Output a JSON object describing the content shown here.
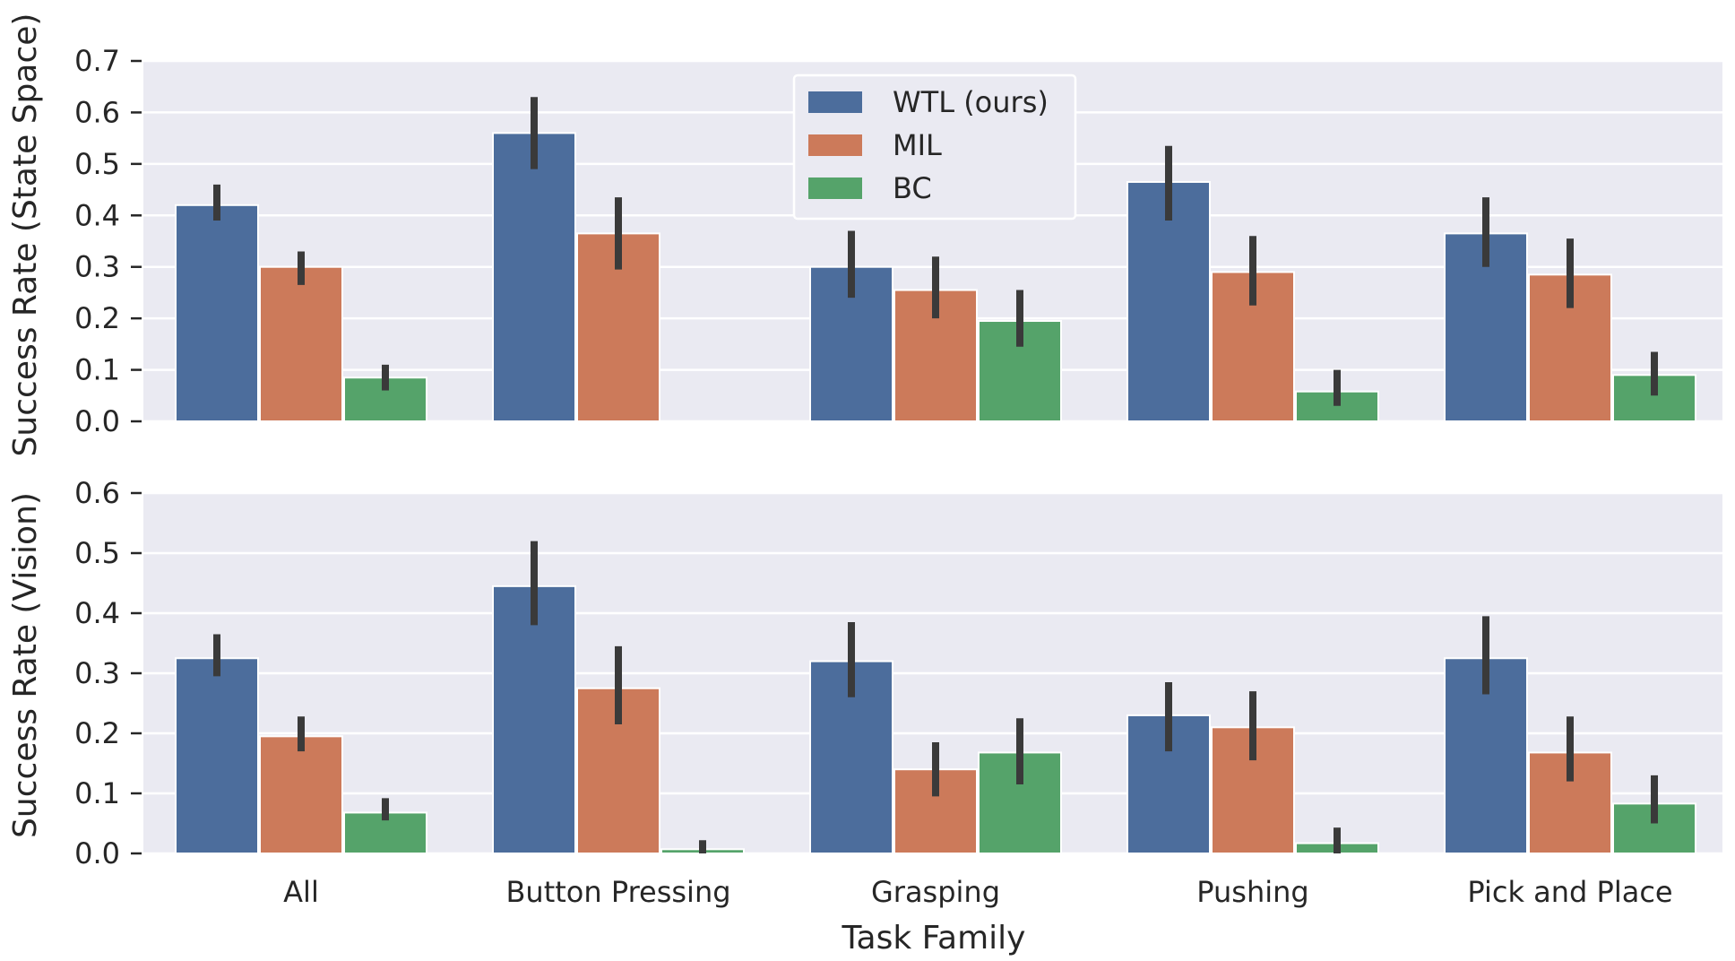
{
  "colors": {
    "panel_bg": "#eaeaf2",
    "grid": "#ffffff",
    "error_bar": "#3a3a3a",
    "text": "#262626"
  },
  "chart_data": [
    {
      "type": "bar",
      "ylabel": "Success Rate (State Space)",
      "ylim": [
        0,
        0.7
      ],
      "yticks": [
        "0.0",
        "0.1",
        "0.2",
        "0.3",
        "0.4",
        "0.5",
        "0.6",
        "0.7"
      ],
      "grid": true,
      "categories": [
        "All",
        "Button Pressing",
        "Grasping",
        "Pushing",
        "Pick and Place"
      ],
      "series": [
        {
          "name": "WTL (ours)",
          "color": "#4c6d9c",
          "values": [
            0.42,
            0.56,
            0.3,
            0.465,
            0.365
          ],
          "err_low": [
            0.39,
            0.49,
            0.24,
            0.39,
            0.3
          ],
          "err_high": [
            0.46,
            0.63,
            0.37,
            0.535,
            0.435
          ]
        },
        {
          "name": "MIL",
          "color": "#cc7a5a",
          "values": [
            0.3,
            0.365,
            0.255,
            0.29,
            0.285
          ],
          "err_low": [
            0.265,
            0.295,
            0.2,
            0.225,
            0.22
          ],
          "err_high": [
            0.33,
            0.435,
            0.32,
            0.36,
            0.355
          ]
        },
        {
          "name": "BC",
          "color": "#55a36a",
          "values": [
            0.085,
            0.0,
            0.195,
            0.058,
            0.09
          ],
          "err_low": [
            0.06,
            0.0,
            0.145,
            0.03,
            0.05
          ],
          "err_high": [
            0.11,
            0.0,
            0.255,
            0.1,
            0.135
          ]
        }
      ],
      "legend": {
        "entries": [
          "WTL (ours)",
          "MIL",
          "BC"
        ],
        "placement": "upper center"
      }
    },
    {
      "type": "bar",
      "ylabel": "Success Rate (Vision)",
      "xlabel": "Task Family",
      "ylim": [
        0,
        0.6
      ],
      "yticks": [
        "0.0",
        "0.1",
        "0.2",
        "0.3",
        "0.4",
        "0.5",
        "0.6"
      ],
      "grid": true,
      "categories": [
        "All",
        "Button Pressing",
        "Grasping",
        "Pushing",
        "Pick and Place"
      ],
      "series": [
        {
          "name": "WTL (ours)",
          "color": "#4c6d9c",
          "values": [
            0.325,
            0.445,
            0.32,
            0.23,
            0.325
          ],
          "err_low": [
            0.295,
            0.38,
            0.26,
            0.17,
            0.265
          ],
          "err_high": [
            0.365,
            0.52,
            0.385,
            0.285,
            0.395
          ]
        },
        {
          "name": "MIL",
          "color": "#cc7a5a",
          "values": [
            0.195,
            0.275,
            0.14,
            0.21,
            0.168
          ],
          "err_low": [
            0.17,
            0.215,
            0.095,
            0.155,
            0.12
          ],
          "err_high": [
            0.228,
            0.345,
            0.185,
            0.27,
            0.228
          ]
        },
        {
          "name": "BC",
          "color": "#55a36a",
          "values": [
            0.068,
            0.007,
            0.168,
            0.017,
            0.083
          ],
          "err_low": [
            0.055,
            0.0,
            0.115,
            0.0,
            0.05
          ],
          "err_high": [
            0.092,
            0.022,
            0.225,
            0.043,
            0.13
          ]
        }
      ]
    }
  ]
}
